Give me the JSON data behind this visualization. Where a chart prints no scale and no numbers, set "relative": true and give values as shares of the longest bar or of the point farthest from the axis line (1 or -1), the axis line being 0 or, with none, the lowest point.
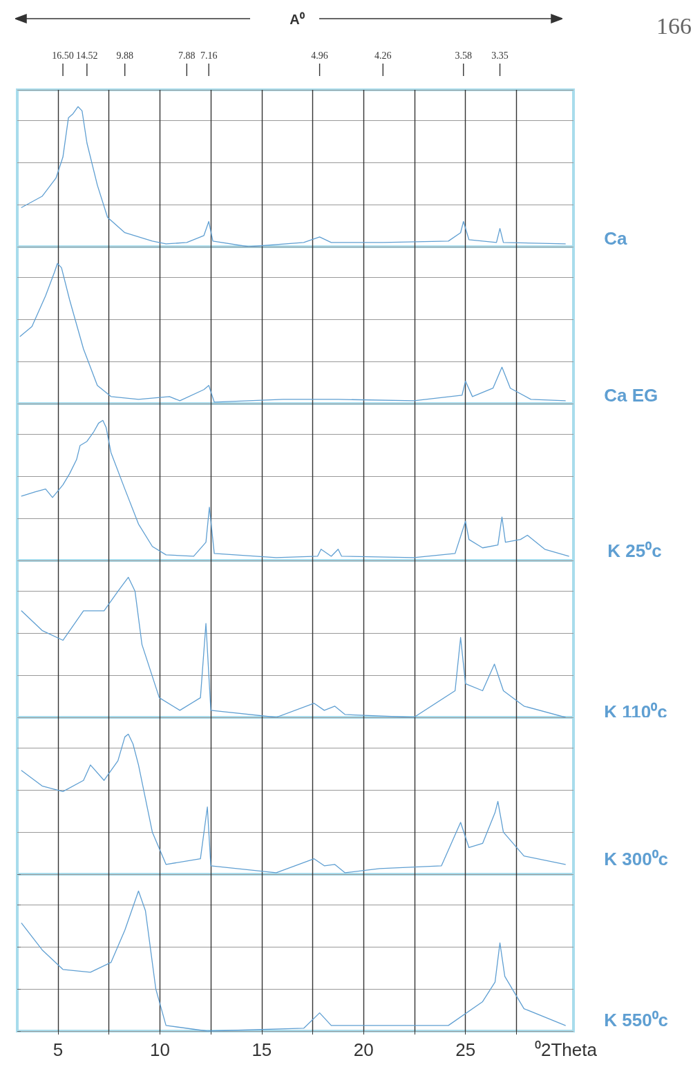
{
  "chart_data": [
    {
      "type": "line",
      "relative": true,
      "xlim": [
        3,
        30.3
      ],
      "tick_labels": false,
      "annotations": [
        "A⁰",
        "166",
        {
          "text": "16.50",
          "x": 5.24
        },
        {
          "text": "14.52",
          "x": 6.42
        },
        {
          "text": "9.88",
          "x": 8.28
        },
        {
          "text": "7.88",
          "x": 11.32
        },
        {
          "text": "7.16",
          "x": 12.4
        },
        {
          "text": "4.96",
          "x": 17.84
        },
        {
          "text": "4.26",
          "x": 20.95
        },
        {
          "text": "3.58",
          "x": 24.9
        },
        {
          "text": "3.35",
          "x": 26.69
        }
      ],
      "grid": true,
      "legend": false,
      "marker": "none",
      "line_style": "solid",
      "xticks": [
        {
          "value": 5,
          "label": null
        },
        {
          "value": 7.5,
          "label": null
        },
        {
          "value": 10,
          "label": null
        },
        {
          "value": 12.5,
          "label": null
        },
        {
          "value": 15,
          "label": null
        },
        {
          "value": 17.5,
          "label": null
        },
        {
          "value": 20,
          "label": null
        },
        {
          "value": 22.5,
          "label": null
        },
        {
          "value": 25,
          "label": null
        },
        {
          "value": 27.5,
          "label": null
        }
      ],
      "series": [
        {
          "name": "Ca",
          "color": "#5f9fd2",
          "x": [
            3.21,
            4.22,
            4.9,
            5.24,
            5.51,
            5.74,
            5.98,
            6.18,
            6.42,
            6.93,
            7.43,
            8.28,
            9.63,
            10.3,
            11.32,
            12.16,
            12.4,
            12.6,
            14.36,
            17.06,
            17.84,
            18.41,
            20.95,
            24.16,
            24.76,
            24.9,
            25.17,
            26.52,
            26.69,
            26.86,
            29.9
          ],
          "values": [
            0.28,
            0.36,
            0.49,
            0.64,
            0.92,
            0.95,
            1,
            0.97,
            0.74,
            0.44,
            0.21,
            0.1,
            0.04,
            0.02,
            0.03,
            0.08,
            0.18,
            0.04,
            0,
            0.03,
            0.07,
            0.03,
            0.03,
            0.04,
            0.1,
            0.18,
            0.05,
            0.03,
            0.13,
            0.03,
            0.02
          ]
        }
      ]
    },
    {
      "type": "line",
      "relative": true,
      "xlim": [
        3,
        30.3
      ],
      "tick_labels": false,
      "grid": true,
      "legend": false,
      "marker": "none",
      "line_style": "solid",
      "xticks": [
        {
          "value": 5,
          "label": null
        },
        {
          "value": 7.5,
          "label": null
        },
        {
          "value": 10,
          "label": null
        },
        {
          "value": 12.5,
          "label": null
        },
        {
          "value": 15,
          "label": null
        },
        {
          "value": 17.5,
          "label": null
        },
        {
          "value": 20,
          "label": null
        },
        {
          "value": 22.5,
          "label": null
        },
        {
          "value": 25,
          "label": null
        },
        {
          "value": 27.5,
          "label": null
        }
      ],
      "series": [
        {
          "name": "Ca EG",
          "color": "#5f9fd2",
          "x": [
            3.14,
            3.72,
            4.39,
            4.83,
            4.97,
            5.17,
            5.57,
            6.25,
            6.93,
            7.6,
            8.95,
            10.47,
            10.98,
            12.16,
            12.4,
            12.67,
            16.05,
            18.75,
            22.47,
            24.83,
            25,
            25.34,
            26.35,
            26.79,
            27.2,
            28.21,
            29.9
          ],
          "values": [
            0.48,
            0.55,
            0.77,
            0.94,
            1,
            0.97,
            0.74,
            0.39,
            0.13,
            0.05,
            0.03,
            0.05,
            0.02,
            0.1,
            0.13,
            0.01,
            0.03,
            0.03,
            0.02,
            0.06,
            0.16,
            0.05,
            0.11,
            0.26,
            0.11,
            0.03,
            0.02
          ]
        }
      ]
    },
    {
      "type": "line",
      "relative": true,
      "xlim": [
        3,
        30.3
      ],
      "tick_labels": false,
      "grid": true,
      "legend": false,
      "marker": "none",
      "line_style": "solid",
      "xticks": [
        {
          "value": 5,
          "label": null
        },
        {
          "value": 7.5,
          "label": null
        },
        {
          "value": 10,
          "label": null
        },
        {
          "value": 12.5,
          "label": null
        },
        {
          "value": 15,
          "label": null
        },
        {
          "value": 17.5,
          "label": null
        },
        {
          "value": 20,
          "label": null
        },
        {
          "value": 22.5,
          "label": null
        },
        {
          "value": 25,
          "label": null
        },
        {
          "value": 27.5,
          "label": null
        }
      ],
      "series": [
        {
          "name": "K 25⁰c",
          "color": "#5f9fd2",
          "x": [
            3.21,
            3.89,
            4.39,
            4.73,
            5.24,
            5.57,
            5.91,
            6.08,
            6.42,
            6.76,
            6.99,
            7.2,
            7.36,
            7.6,
            8.28,
            8.95,
            9.63,
            10.3,
            11.66,
            12.26,
            12.43,
            12.67,
            15.71,
            17.74,
            17.91,
            18.41,
            18.75,
            18.92,
            22.47,
            24.49,
            25,
            25.17,
            25.84,
            26.59,
            26.79,
            26.96,
            27.7,
            28.04,
            28.89,
            30.07
          ],
          "values": [
            0.46,
            0.49,
            0.51,
            0.45,
            0.54,
            0.62,
            0.72,
            0.82,
            0.85,
            0.92,
            0.98,
            1,
            0.95,
            0.77,
            0.51,
            0.26,
            0.1,
            0.04,
            0.03,
            0.13,
            0.38,
            0.05,
            0.02,
            0.03,
            0.08,
            0.03,
            0.08,
            0.03,
            0.02,
            0.05,
            0.28,
            0.15,
            0.09,
            0.11,
            0.31,
            0.13,
            0.15,
            0.18,
            0.08,
            0.03
          ]
        }
      ]
    },
    {
      "type": "line",
      "relative": true,
      "xlim": [
        3,
        30.3
      ],
      "tick_labels": false,
      "grid": true,
      "legend": false,
      "marker": "none",
      "line_style": "solid",
      "xticks": [
        {
          "value": 5,
          "label": null
        },
        {
          "value": 7.5,
          "label": null
        },
        {
          "value": 10,
          "label": null
        },
        {
          "value": 12.5,
          "label": null
        },
        {
          "value": 15,
          "label": null
        },
        {
          "value": 17.5,
          "label": null
        },
        {
          "value": 20,
          "label": null
        },
        {
          "value": 22.5,
          "label": null
        },
        {
          "value": 25,
          "label": null
        },
        {
          "value": 27.5,
          "label": null
        }
      ],
      "series": [
        {
          "name": "K 110⁰c",
          "color": "#5f9fd2",
          "x": [
            3.21,
            4.22,
            5.24,
            6.25,
            7.26,
            7.94,
            8.45,
            8.78,
            9.12,
            9.97,
            10.98,
            11.99,
            12.26,
            12.5,
            15.71,
            17.57,
            18.07,
            18.58,
            19.09,
            22.47,
            24.49,
            24.76,
            25,
            25.84,
            26.42,
            26.86,
            27.87,
            29.9
          ],
          "values": [
            0.76,
            0.62,
            0.55,
            0.76,
            0.76,
            0.9,
            1,
            0.9,
            0.52,
            0.14,
            0.05,
            0.14,
            0.67,
            0.05,
            0,
            0.1,
            0.05,
            0.08,
            0.02,
            0,
            0.19,
            0.57,
            0.24,
            0.19,
            0.38,
            0.19,
            0.08,
            0
          ]
        }
      ]
    },
    {
      "type": "line",
      "relative": true,
      "xlim": [
        3,
        30.3
      ],
      "tick_labels": false,
      "grid": true,
      "legend": false,
      "marker": "none",
      "line_style": "solid",
      "xticks": [
        {
          "value": 5,
          "label": null
        },
        {
          "value": 7.5,
          "label": null
        },
        {
          "value": 10,
          "label": null
        },
        {
          "value": 12.5,
          "label": null
        },
        {
          "value": 15,
          "label": null
        },
        {
          "value": 17.5,
          "label": null
        },
        {
          "value": 20,
          "label": null
        },
        {
          "value": 22.5,
          "label": null
        },
        {
          "value": 25,
          "label": null
        },
        {
          "value": 27.5,
          "label": null
        }
      ],
      "series": [
        {
          "name": "K 300⁰c",
          "color": "#5f9fd2",
          "x": [
            3.21,
            4.22,
            5.24,
            6.25,
            6.59,
            7.26,
            7.94,
            8.28,
            8.45,
            8.68,
            8.95,
            9.63,
            10.3,
            11.99,
            12.33,
            12.5,
            15.71,
            17.57,
            18.07,
            18.58,
            19.09,
            20.78,
            23.82,
            24.76,
            25.17,
            25.84,
            26.45,
            26.59,
            26.86,
            27.87,
            29.9
          ],
          "values": [
            0.74,
            0.63,
            0.59,
            0.67,
            0.78,
            0.67,
            0.81,
            0.98,
            1,
            0.93,
            0.78,
            0.3,
            0.07,
            0.11,
            0.48,
            0.06,
            0.01,
            0.11,
            0.06,
            0.07,
            0.01,
            0.04,
            0.06,
            0.37,
            0.19,
            0.22,
            0.44,
            0.52,
            0.3,
            0.13,
            0.07
          ]
        }
      ]
    },
    {
      "type": "line",
      "relative": true,
      "xlim": [
        3,
        30.3
      ],
      "xlabel": "⁰2Theta",
      "grid": true,
      "legend": false,
      "marker": "none",
      "line_style": "solid",
      "xticks": [
        5,
        {
          "value": 7.5,
          "label": null
        },
        10,
        {
          "value": 12.5,
          "label": null
        },
        15,
        {
          "value": 17.5,
          "label": null
        },
        20,
        {
          "value": 22.5,
          "label": null
        },
        25,
        {
          "value": 27.5,
          "label": null
        }
      ],
      "series": [
        {
          "name": "K 550⁰c",
          "color": "#5f9fd2",
          "x": [
            3.21,
            4.22,
            5.24,
            6.59,
            7.6,
            8.28,
            8.95,
            9.29,
            9.8,
            10.3,
            12.33,
            17.06,
            17.84,
            18.41,
            20.95,
            24.16,
            25.84,
            26.45,
            26.69,
            26.93,
            27.87,
            29.9
          ],
          "values": [
            0.77,
            0.58,
            0.44,
            0.42,
            0.49,
            0.72,
            1,
            0.86,
            0.3,
            0.04,
            0,
            0.02,
            0.13,
            0.04,
            0.04,
            0.04,
            0.21,
            0.35,
            0.63,
            0.39,
            0.16,
            0.04
          ]
        }
      ]
    }
  ]
}
